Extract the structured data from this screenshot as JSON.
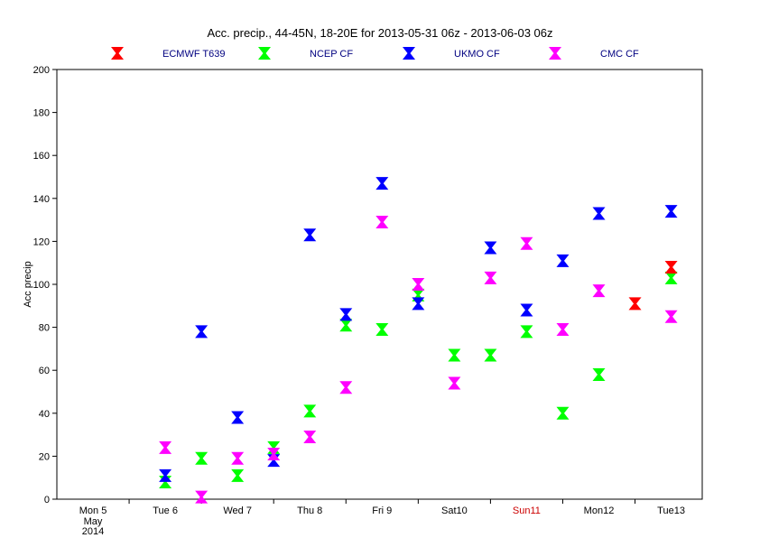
{
  "chart_data": {
    "type": "scatter",
    "title": "Acc. precip.,  44-45N, 18-20E for 2013-05-31 06z - 2013-06-03 06z",
    "ylabel": "Acc precip",
    "ylim": [
      0,
      200
    ],
    "y_ticks": [
      0,
      20,
      40,
      60,
      80,
      100,
      120,
      140,
      160,
      180,
      200
    ],
    "x_categories": [
      {
        "label": "Mon 5",
        "extra": [
          "May",
          "2014"
        ],
        "color": "#000000"
      },
      {
        "label": "Tue 6",
        "color": "#000000"
      },
      {
        "label": "Wed 7",
        "color": "#000000"
      },
      {
        "label": "Thu 8",
        "color": "#000000"
      },
      {
        "label": "Fri 9",
        "color": "#000000"
      },
      {
        "label": "Sat10",
        "color": "#000000"
      },
      {
        "label": "Sun11",
        "color": "#cc0000"
      },
      {
        "label": "Mon12",
        "color": "#000000"
      },
      {
        "label": "Tue13",
        "color": "#000000"
      }
    ],
    "marker": "hourglass",
    "series": [
      {
        "name": "ECMWF T639",
        "color": "#ff0000",
        "points": [
          [
            7.5,
            91
          ],
          [
            8.0,
            108
          ]
        ]
      },
      {
        "name": "NCEP CF",
        "color": "#00ff00",
        "points": [
          [
            1.0,
            8
          ],
          [
            1.5,
            19
          ],
          [
            2.0,
            11
          ],
          [
            2.5,
            24
          ],
          [
            3.0,
            41
          ],
          [
            3.5,
            81
          ],
          [
            4.0,
            79
          ],
          [
            4.5,
            95
          ],
          [
            5.0,
            67
          ],
          [
            5.5,
            67
          ],
          [
            6.0,
            78
          ],
          [
            6.5,
            40
          ],
          [
            7.0,
            58
          ],
          [
            8.0,
            103
          ]
        ]
      },
      {
        "name": "UKMO CF",
        "color": "#0000ff",
        "points": [
          [
            1.0,
            11
          ],
          [
            1.5,
            78
          ],
          [
            2.0,
            38
          ],
          [
            2.5,
            18
          ],
          [
            3.0,
            123
          ],
          [
            3.5,
            86
          ],
          [
            4.0,
            147
          ],
          [
            4.5,
            91
          ],
          [
            5.5,
            117
          ],
          [
            6.0,
            88
          ],
          [
            6.5,
            111
          ],
          [
            7.0,
            133
          ],
          [
            8.0,
            134
          ]
        ]
      },
      {
        "name": "CMC CF",
        "color": "#ff00ff",
        "points": [
          [
            1.0,
            24
          ],
          [
            1.5,
            1
          ],
          [
            2.0,
            19
          ],
          [
            2.5,
            21
          ],
          [
            3.0,
            29
          ],
          [
            3.5,
            52
          ],
          [
            4.0,
            129
          ],
          [
            4.5,
            100
          ],
          [
            5.0,
            54
          ],
          [
            5.5,
            103
          ],
          [
            6.0,
            119
          ],
          [
            6.5,
            79
          ],
          [
            7.0,
            97
          ],
          [
            8.0,
            85
          ]
        ]
      }
    ]
  }
}
